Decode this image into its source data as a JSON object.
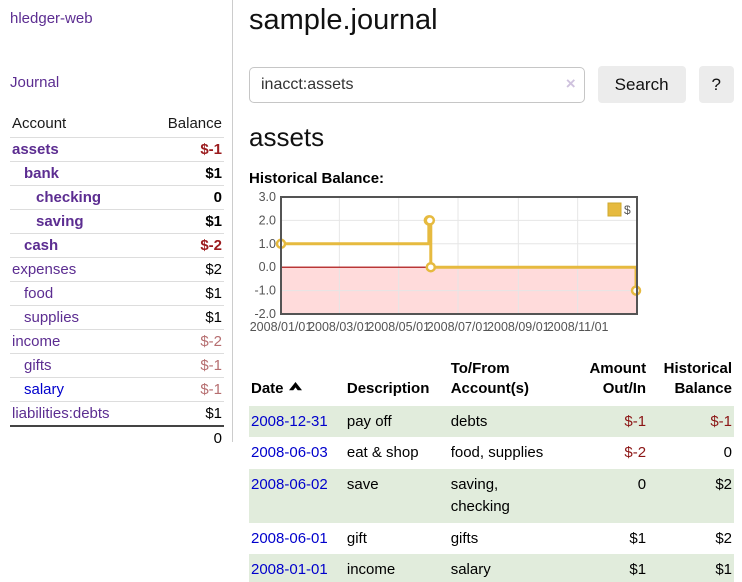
{
  "app": {
    "title": "hledger-web"
  },
  "sidebar": {
    "journal_label": "Journal",
    "headers": {
      "account": "Account",
      "balance": "Balance"
    },
    "accounts": [
      {
        "name": "assets",
        "balance": "$-1",
        "depth": 1,
        "bold": true,
        "balance_style": "neg-strong"
      },
      {
        "name": "bank",
        "balance": "$1",
        "depth": 2,
        "bold": true,
        "balance_style": "pos-strong"
      },
      {
        "name": "checking",
        "balance": "0",
        "depth": 3,
        "bold": true,
        "balance_style": "pos-strong"
      },
      {
        "name": "saving",
        "balance": "$1",
        "depth": 3,
        "bold": true,
        "balance_style": "pos-strong"
      },
      {
        "name": "cash",
        "balance": "$-2",
        "depth": 2,
        "bold": true,
        "balance_style": "neg-strong"
      },
      {
        "name": "expenses",
        "balance": "$2",
        "depth": 1,
        "bold": false,
        "balance_style": "pos"
      },
      {
        "name": "food",
        "balance": "$1",
        "depth": 2,
        "bold": false,
        "balance_style": "pos"
      },
      {
        "name": "supplies",
        "balance": "$1",
        "depth": 2,
        "bold": false,
        "balance_style": "pos"
      },
      {
        "name": "income",
        "balance": "$-2",
        "depth": 1,
        "bold": false,
        "balance_style": "neg-dim"
      },
      {
        "name": "gifts",
        "balance": "$-1",
        "depth": 2,
        "bold": false,
        "balance_style": "neg-dim"
      },
      {
        "name": "salary",
        "balance": "$-1",
        "depth": 2,
        "bold": false,
        "balance_style": "neg-dim",
        "link_color": "blue"
      },
      {
        "name": "liabilities:debts",
        "balance": "$1",
        "depth": 1,
        "bold": false,
        "balance_style": "pos"
      }
    ],
    "total": "0"
  },
  "main": {
    "title": "sample.journal"
  },
  "search": {
    "value": "inacct:assets",
    "clear_icon": "×",
    "button_label": "Search",
    "help_label": "?"
  },
  "account_page": {
    "title": "assets",
    "section_label": "Historical Balance:"
  },
  "chart_data": {
    "type": "line",
    "step": true,
    "title": "Historical Balance",
    "x_range": [
      "2008-01-01",
      "2009-01-01"
    ],
    "x_ticks": [
      "2008/01/01",
      "2008/03/01",
      "2008/05/01",
      "2008/07/01",
      "2008/09/01",
      "2008/11/01"
    ],
    "y_ticks": [
      "3.0",
      "2.0",
      "1.0",
      "0.0",
      "-1.0",
      "-2.0"
    ],
    "ylim": [
      -2,
      3
    ],
    "grid": true,
    "legend_position": "top-right",
    "series": [
      {
        "name": "$",
        "color": "#e6ba3f",
        "points": [
          [
            "2008-01-01",
            1
          ],
          [
            "2008-06-01",
            2
          ],
          [
            "2008-06-02",
            2
          ],
          [
            "2008-06-03",
            0
          ],
          [
            "2008-12-31",
            -1
          ]
        ]
      }
    ],
    "colors": {
      "border": "#545454",
      "gridline": "#e6e6e6",
      "tick_text": "#545454",
      "negative_region": "#ffdbdb",
      "zero_line": "#a40000",
      "marker_fill": "#ffffff"
    }
  },
  "register": {
    "headers": {
      "date": "Date",
      "description": "Description",
      "accounts": "To/From Account(s)",
      "amount": "Amount Out/In",
      "balance": "Historical Balance"
    },
    "rows": [
      {
        "date": "2008-12-31",
        "description": "pay off",
        "accounts": "debts",
        "amount": "$-1",
        "amount_neg": true,
        "balance": "$-1",
        "balance_neg": true
      },
      {
        "date": "2008-06-03",
        "description": "eat & shop",
        "accounts": "food, supplies",
        "amount": "$-2",
        "amount_neg": true,
        "balance": "0",
        "balance_neg": false
      },
      {
        "date": "2008-06-02",
        "description": "save",
        "accounts": "saving,\nchecking",
        "amount": "0",
        "amount_neg": false,
        "balance": "$2",
        "balance_neg": false
      },
      {
        "date": "2008-06-01",
        "description": "gift",
        "accounts": "gifts",
        "amount": "$1",
        "amount_neg": false,
        "balance": "$2",
        "balance_neg": false
      },
      {
        "date": "2008-01-01",
        "description": "income",
        "accounts": "salary",
        "amount": "$1",
        "amount_neg": false,
        "balance": "$1",
        "balance_neg": false
      }
    ]
  }
}
